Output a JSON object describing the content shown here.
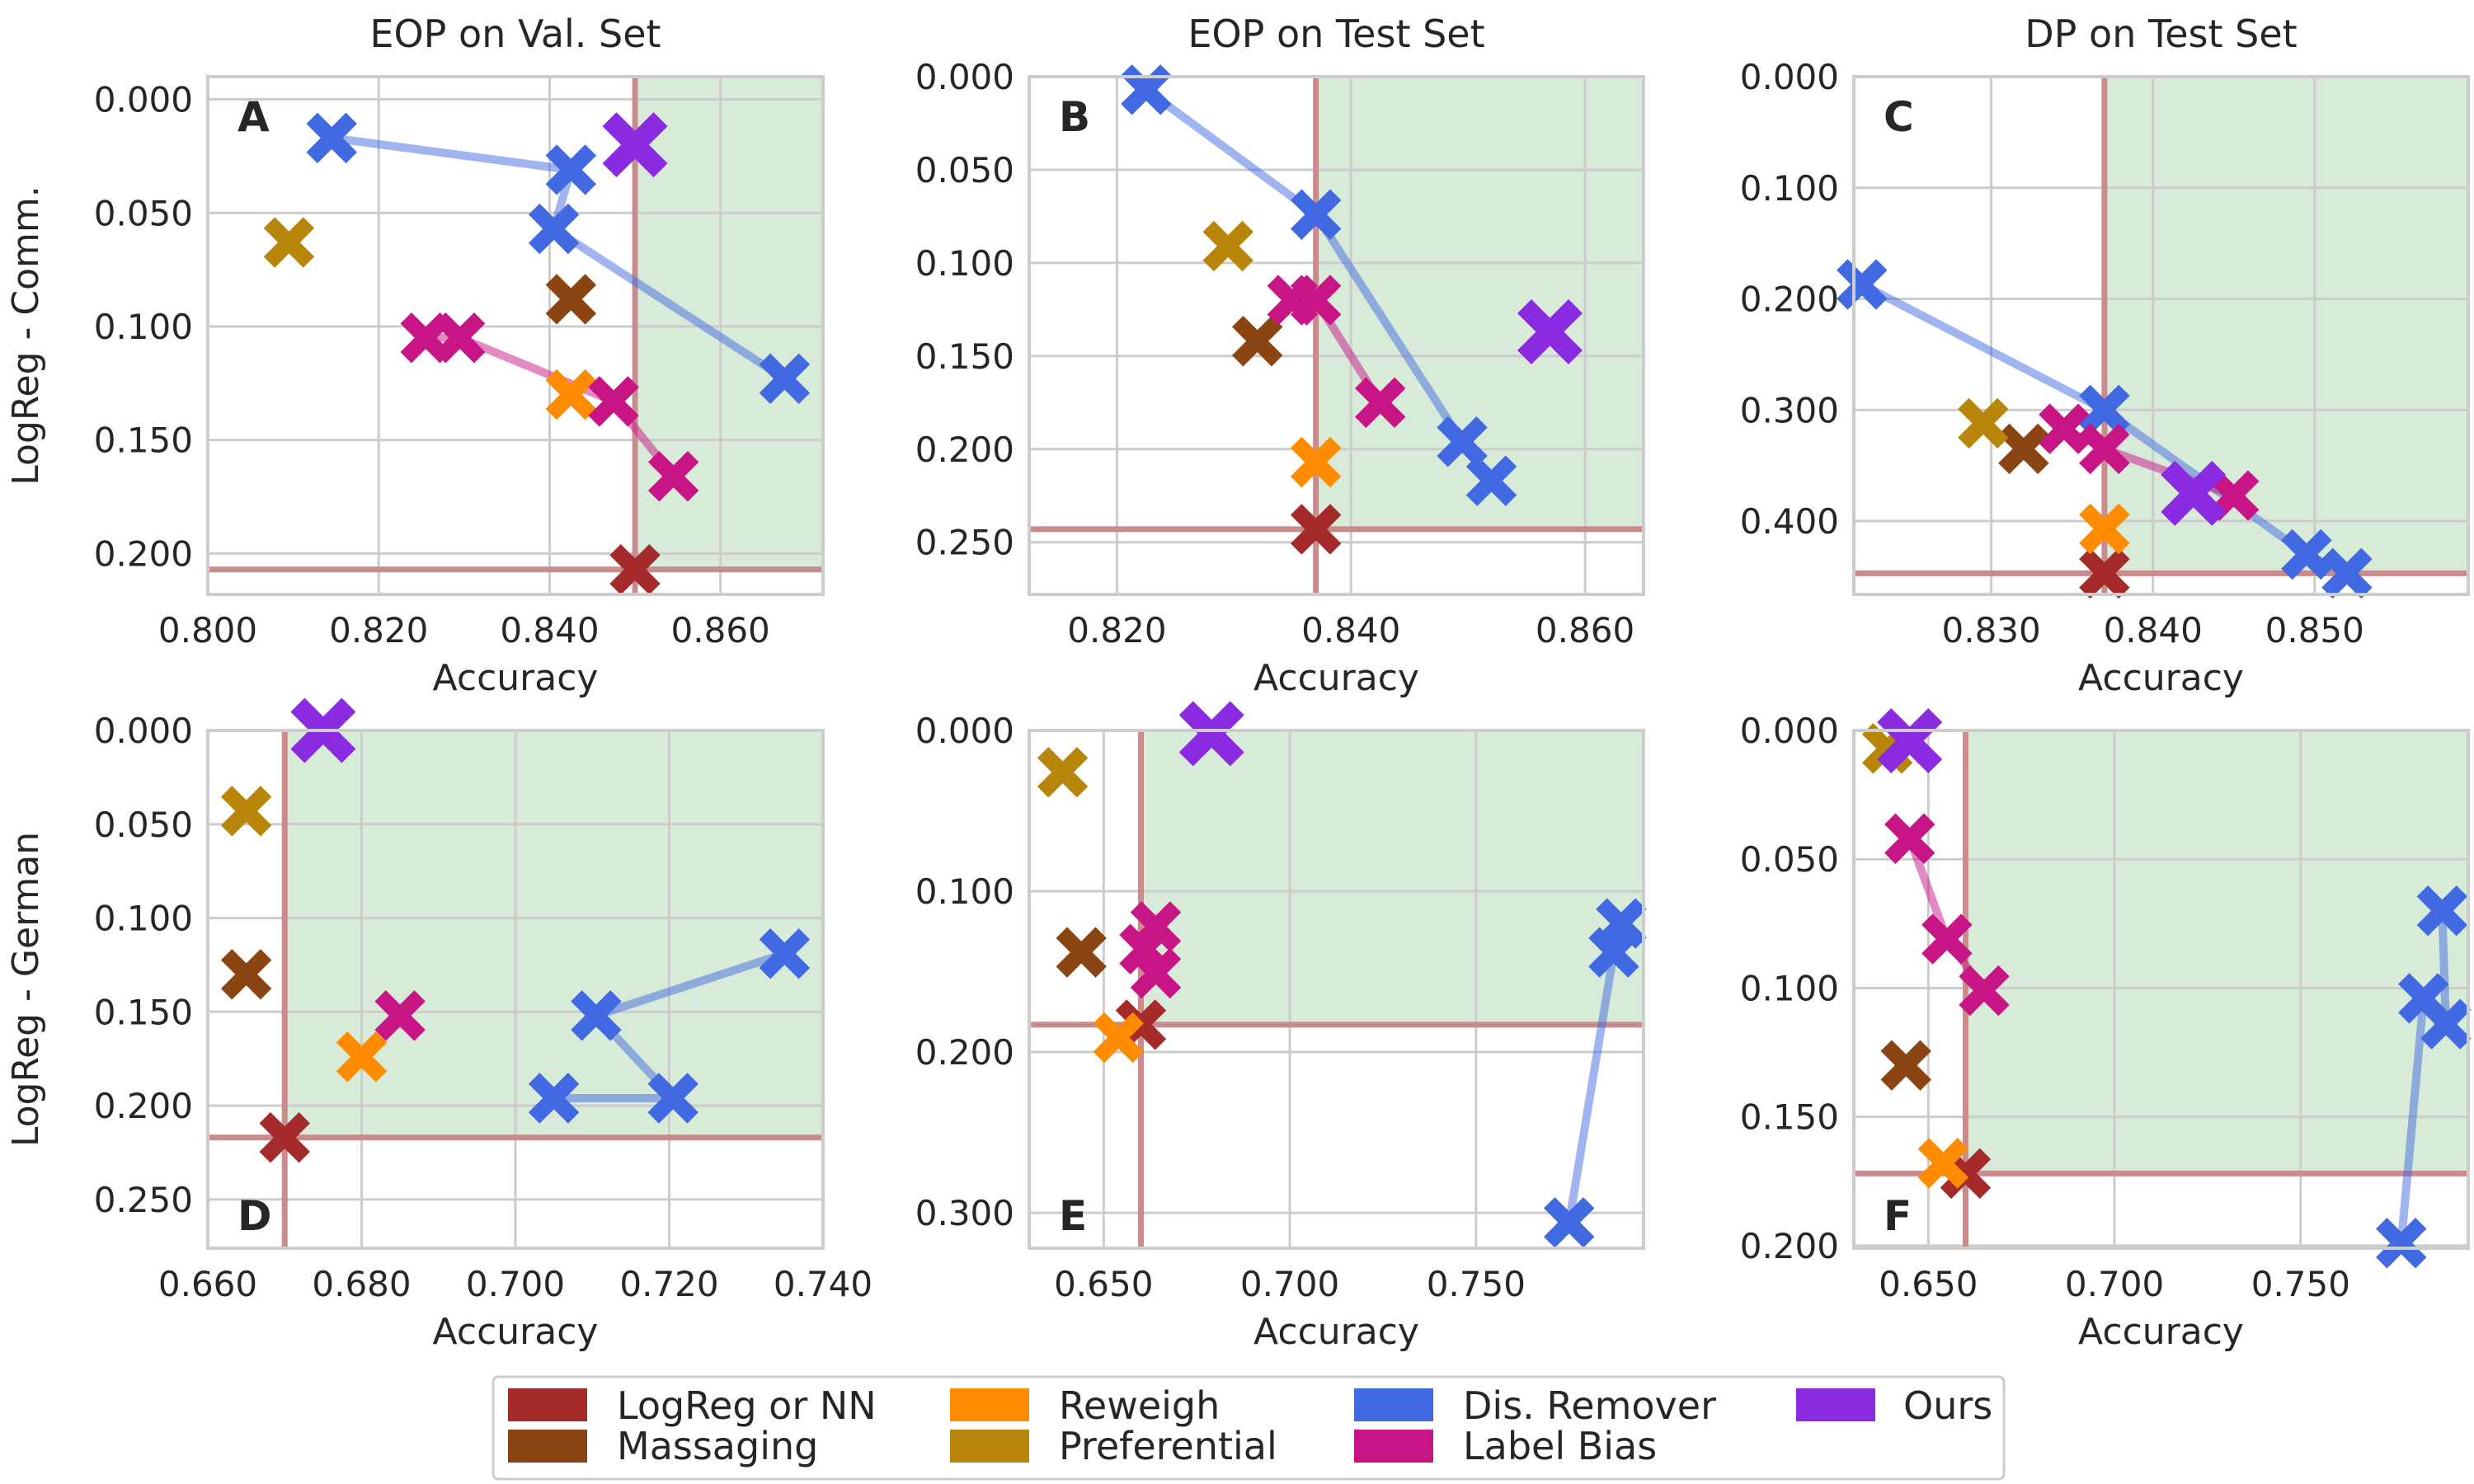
{
  "colors": {
    "LogReg or NN": "#a52a2a",
    "Massaging": "#8b4513",
    "Reweigh": "#ff8c00",
    "Preferential": "#b8860b",
    "Dis. Remover": "#4169e1",
    "Label Bias": "#c71585",
    "Ours": "#8a2be2",
    "region": "#d8ead8",
    "refline": "#c88c8c",
    "grid": "#cccccc"
  },
  "legend": {
    "entries": [
      "LogReg or NN",
      "Massaging",
      "Reweigh",
      "Preferential",
      "Dis. Remover",
      "Label Bias",
      "Ours"
    ]
  },
  "chart_data": [
    {
      "type": "scatter",
      "id": "A",
      "letter": "A",
      "title": "EOP on Val. Set",
      "xlabel": "Accuracy",
      "ylabel": "LogReg - Comm.",
      "xlim": [
        0.8,
        0.872
      ],
      "ylim": [
        0.218,
        -0.01
      ],
      "xticks": [
        0.8,
        0.82,
        0.84,
        0.86
      ],
      "xtick_labels": [
        "0.800",
        "0.820",
        "0.840",
        "0.860"
      ],
      "yticks": [
        0.0,
        0.05,
        0.1,
        0.15,
        0.2
      ],
      "ytick_labels": [
        "0.000",
        "0.050",
        "0.100",
        "0.150",
        "0.200"
      ],
      "ref": {
        "x": 0.85,
        "y": 0.207
      },
      "region": {
        "x_from": 0.85,
        "y_from": -0.01,
        "y_to": 0.207
      },
      "series": [
        {
          "name": "LogReg or NN",
          "points": [
            [
              0.85,
              0.207
            ]
          ]
        },
        {
          "name": "Massaging",
          "points": [
            [
              0.8425,
              0.088
            ]
          ]
        },
        {
          "name": "Reweigh",
          "points": [
            [
              0.8425,
              0.13
            ]
          ]
        },
        {
          "name": "Preferential",
          "points": [
            [
              0.8095,
              0.063
            ]
          ]
        },
        {
          "name": "Dis. Remover",
          "points": [
            [
              0.8145,
              0.017
            ],
            [
              0.8425,
              0.031
            ],
            [
              0.8405,
              0.057
            ],
            [
              0.8675,
              0.123
            ]
          ],
          "connect": true
        },
        {
          "name": "Label Bias",
          "points": [
            [
              0.8255,
              0.105
            ],
            [
              0.8295,
              0.105
            ],
            [
              0.8475,
              0.133
            ],
            [
              0.8545,
              0.166
            ]
          ],
          "connect": true
        },
        {
          "name": "Ours",
          "points": [
            [
              0.85,
              0.02
            ]
          ],
          "large": true
        }
      ]
    },
    {
      "type": "scatter",
      "id": "B",
      "letter": "B",
      "title": "EOP on Test Set",
      "xlabel": "Accuracy",
      "ylabel": "",
      "xlim": [
        0.8125,
        0.865
      ],
      "ylim": [
        0.278,
        0.0
      ],
      "xticks": [
        0.82,
        0.84,
        0.86
      ],
      "xtick_labels": [
        "0.820",
        "0.840",
        "0.860"
      ],
      "yticks": [
        0.0,
        0.05,
        0.1,
        0.15,
        0.2,
        0.25
      ],
      "ytick_labels": [
        "0.000",
        "0.050",
        "0.100",
        "0.150",
        "0.200",
        "0.250"
      ],
      "ref": {
        "x": 0.837,
        "y": 0.243
      },
      "region": {
        "x_from": 0.837,
        "y_from": 0.0,
        "y_to": 0.243
      },
      "series": [
        {
          "name": "LogReg or NN",
          "points": [
            [
              0.837,
              0.243
            ]
          ]
        },
        {
          "name": "Massaging",
          "points": [
            [
              0.832,
              0.142
            ]
          ]
        },
        {
          "name": "Reweigh",
          "points": [
            [
              0.837,
              0.207
            ]
          ]
        },
        {
          "name": "Preferential",
          "points": [
            [
              0.8295,
              0.091
            ]
          ]
        },
        {
          "name": "Dis. Remover",
          "points": [
            [
              0.8225,
              0.007
            ],
            [
              0.837,
              0.074
            ],
            [
              0.8495,
              0.196
            ],
            [
              0.852,
              0.217
            ]
          ],
          "connect": true
        },
        {
          "name": "Label Bias",
          "points": [
            [
              0.835,
              0.12
            ],
            [
              0.837,
              0.12
            ],
            [
              0.8425,
              0.175
            ]
          ],
          "connect": true
        },
        {
          "name": "Ours",
          "points": [
            [
              0.857,
              0.137
            ]
          ],
          "large": true
        }
      ]
    },
    {
      "type": "scatter",
      "id": "C",
      "letter": "C",
      "title": "DP on Test Set",
      "xlabel": "Accuracy",
      "ylabel": "",
      "xlim": [
        0.8215,
        0.8595
      ],
      "ylim": [
        0.466,
        0.0
      ],
      "xticks": [
        0.83,
        0.84,
        0.85
      ],
      "xtick_labels": [
        "0.830",
        "0.840",
        "0.850"
      ],
      "yticks": [
        0.0,
        0.1,
        0.2,
        0.3,
        0.4
      ],
      "ytick_labels": [
        "0.000",
        "0.100",
        "0.200",
        "0.300",
        "0.400"
      ],
      "ref": {
        "x": 0.837,
        "y": 0.447
      },
      "region": {
        "x_from": 0.837,
        "y_from": 0.0,
        "y_to": 0.447
      },
      "series": [
        {
          "name": "LogReg or NN",
          "points": [
            [
              0.837,
              0.447
            ]
          ]
        },
        {
          "name": "Massaging",
          "points": [
            [
              0.832,
              0.335
            ]
          ]
        },
        {
          "name": "Reweigh",
          "points": [
            [
              0.837,
              0.407
            ]
          ]
        },
        {
          "name": "Preferential",
          "points": [
            [
              0.8295,
              0.312
            ]
          ]
        },
        {
          "name": "Dis. Remover",
          "points": [
            [
              0.822,
              0.187
            ],
            [
              0.837,
              0.3
            ],
            [
              0.8495,
              0.43
            ],
            [
              0.852,
              0.447
            ]
          ],
          "connect": true
        },
        {
          "name": "Label Bias",
          "points": [
            [
              0.8345,
              0.317
            ],
            [
              0.837,
              0.335
            ],
            [
              0.845,
              0.377
            ]
          ],
          "connect": true
        },
        {
          "name": "Ours",
          "points": [
            [
              0.8425,
              0.375
            ]
          ],
          "large": true
        }
      ]
    },
    {
      "type": "scatter",
      "id": "D",
      "letter": "D",
      "title": "",
      "xlabel": "Accuracy",
      "ylabel": "LogReg - German",
      "xlim": [
        0.66,
        0.74
      ],
      "ylim": [
        0.276,
        0.0
      ],
      "xticks": [
        0.66,
        0.68,
        0.7,
        0.72,
        0.74
      ],
      "xtick_labels": [
        "0.660",
        "0.680",
        "0.700",
        "0.720",
        "0.740"
      ],
      "yticks": [
        0.0,
        0.05,
        0.1,
        0.15,
        0.2,
        0.25
      ],
      "ytick_labels": [
        "0.000",
        "0.050",
        "0.100",
        "0.150",
        "0.200",
        "0.250"
      ],
      "ref": {
        "x": 0.67,
        "y": 0.217
      },
      "region": {
        "x_from": 0.67,
        "y_from": 0.0,
        "y_to": 0.217
      },
      "series": [
        {
          "name": "LogReg or NN",
          "points": [
            [
              0.67,
              0.217
            ]
          ]
        },
        {
          "name": "Massaging",
          "points": [
            [
              0.665,
              0.13
            ]
          ]
        },
        {
          "name": "Reweigh",
          "points": [
            [
              0.68,
              0.174
            ]
          ]
        },
        {
          "name": "Preferential",
          "points": [
            [
              0.665,
              0.043
            ]
          ]
        },
        {
          "name": "Dis. Remover",
          "points": [
            [
              0.735,
              0.119
            ],
            [
              0.7105,
              0.152
            ],
            [
              0.7205,
              0.196
            ],
            [
              0.705,
              0.196
            ]
          ],
          "connect": true
        },
        {
          "name": "Label Bias",
          "points": [
            [
              0.685,
              0.152
            ]
          ]
        },
        {
          "name": "Ours",
          "points": [
            [
              0.675,
              0.0
            ]
          ],
          "large": true
        }
      ]
    },
    {
      "type": "scatter",
      "id": "E",
      "letter": "E",
      "title": "",
      "xlabel": "Accuracy",
      "ylabel": "",
      "xlim": [
        0.63,
        0.795
      ],
      "ylim": [
        0.322,
        0.0
      ],
      "xticks": [
        0.65,
        0.7,
        0.75
      ],
      "xtick_labels": [
        "0.650",
        "0.700",
        "0.750"
      ],
      "yticks": [
        0.0,
        0.1,
        0.2,
        0.3
      ],
      "ytick_labels": [
        "0.000",
        "0.100",
        "0.200",
        "0.300"
      ],
      "ref": {
        "x": 0.66,
        "y": 0.183
      },
      "region": {
        "x_from": 0.66,
        "y_from": 0.0,
        "y_to": 0.183
      },
      "series": [
        {
          "name": "LogReg or NN",
          "points": [
            [
              0.66,
              0.183
            ]
          ]
        },
        {
          "name": "Massaging",
          "points": [
            [
              0.644,
              0.138
            ]
          ]
        },
        {
          "name": "Reweigh",
          "points": [
            [
              0.654,
              0.191
            ]
          ]
        },
        {
          "name": "Preferential",
          "points": [
            [
              0.639,
              0.026
            ]
          ]
        },
        {
          "name": "Dis. Remover",
          "points": [
            [
              0.775,
              0.306
            ],
            [
              0.787,
              0.138
            ],
            [
              0.789,
              0.12
            ]
          ],
          "connect": true
        },
        {
          "name": "Label Bias",
          "points": [
            [
              0.664,
              0.122
            ],
            [
              0.661,
              0.136
            ],
            [
              0.664,
              0.151
            ]
          ],
          "connect": true
        },
        {
          "name": "Ours",
          "points": [
            [
              0.679,
              0.002
            ]
          ],
          "large": true
        }
      ]
    },
    {
      "type": "scatter",
      "id": "F",
      "letter": "F",
      "title": "",
      "xlabel": "Accuracy",
      "ylabel": "",
      "xlim": [
        0.63,
        0.795
      ],
      "ylim": [
        0.201,
        0.0
      ],
      "xticks": [
        0.65,
        0.7,
        0.75
      ],
      "xtick_labels": [
        "0.650",
        "0.700",
        "0.750"
      ],
      "yticks": [
        0.0,
        0.05,
        0.1,
        0.15,
        0.2
      ],
      "ytick_labels": [
        "0.000",
        "0.050",
        "0.100",
        "0.150",
        "0.200"
      ],
      "ref": {
        "x": 0.66,
        "y": 0.172
      },
      "region": {
        "x_from": 0.66,
        "y_from": 0.0,
        "y_to": 0.172
      },
      "series": [
        {
          "name": "LogReg or NN",
          "points": [
            [
              0.66,
              0.172
            ]
          ]
        },
        {
          "name": "Massaging",
          "points": [
            [
              0.644,
              0.13
            ]
          ]
        },
        {
          "name": "Reweigh",
          "points": [
            [
              0.654,
              0.168
            ]
          ]
        },
        {
          "name": "Preferential",
          "points": [
            [
              0.639,
              0.007
            ]
          ]
        },
        {
          "name": "Dis. Remover",
          "points": [
            [
              0.777,
              0.199
            ],
            [
              0.783,
              0.104
            ],
            [
              0.789,
              0.114
            ],
            [
              0.788,
              0.07
            ]
          ],
          "connect": true
        },
        {
          "name": "Label Bias",
          "points": [
            [
              0.645,
              0.042
            ],
            [
              0.655,
              0.081
            ],
            [
              0.665,
              0.101
            ]
          ],
          "connect": true
        },
        {
          "name": "Ours",
          "points": [
            [
              0.645,
              0.004
            ]
          ],
          "large": true
        }
      ]
    }
  ]
}
